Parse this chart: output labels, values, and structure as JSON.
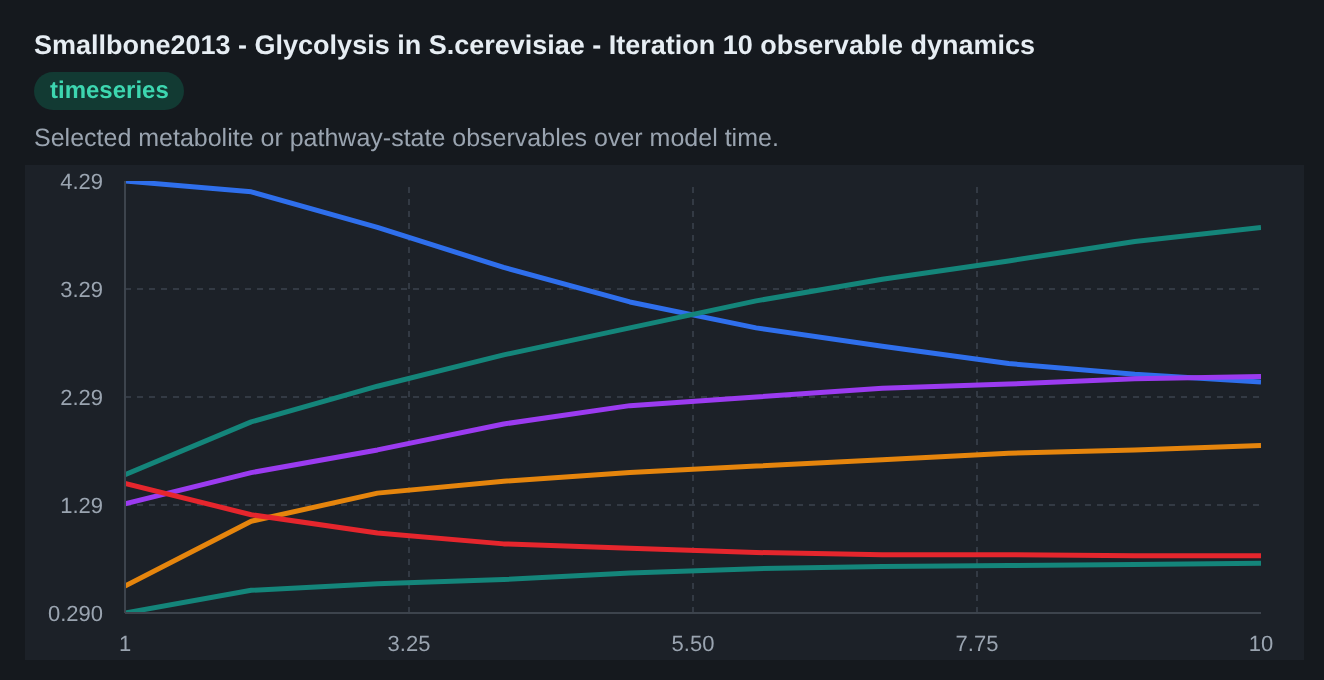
{
  "chart_data": {
    "type": "line",
    "title": "Smallbone2013 - Glycolysis in S.cerevisiae - Iteration 10 observable dynamics",
    "subtitle": "Selected metabolite or pathway-state observables over model time.",
    "annotations": [
      "timeseries"
    ],
    "x": [
      1,
      2,
      3,
      4,
      5,
      6,
      7,
      8,
      9,
      10
    ],
    "series": [
      {
        "color": "#2f6fec",
        "values": [
          4.29,
          4.19,
          3.86,
          3.49,
          3.17,
          2.93,
          2.76,
          2.6,
          2.5,
          2.43
        ]
      },
      {
        "color": "#14857a",
        "values": [
          1.57,
          2.06,
          2.39,
          2.68,
          2.93,
          3.18,
          3.38,
          3.55,
          3.73,
          3.86
        ]
      },
      {
        "color": "#9b3bf0",
        "values": [
          1.3,
          1.59,
          1.8,
          2.04,
          2.21,
          2.29,
          2.37,
          2.41,
          2.46,
          2.48
        ]
      },
      {
        "color": "#e5850d",
        "values": [
          0.54,
          1.14,
          1.4,
          1.51,
          1.59,
          1.65,
          1.71,
          1.77,
          1.8,
          1.84
        ]
      },
      {
        "color": "#e5262d",
        "values": [
          1.49,
          1.2,
          1.03,
          0.93,
          0.89,
          0.85,
          0.83,
          0.83,
          0.82,
          0.82
        ]
      },
      {
        "color": "#14857a",
        "values": [
          0.29,
          0.5,
          0.56,
          0.6,
          0.66,
          0.7,
          0.72,
          0.73,
          0.74,
          0.75
        ]
      }
    ],
    "xlim": [
      1,
      10
    ],
    "ylim": [
      0.29,
      4.29
    ],
    "xticks": [
      1,
      3.25,
      {
        "value": 5.5,
        "label": "5.50"
      },
      7.75,
      10
    ],
    "yticks": [
      {
        "value": 0.29,
        "label": "0.290"
      },
      1.29,
      2.29,
      3.29,
      4.29
    ],
    "grid": true,
    "marker": "none",
    "line_style": "solid"
  }
}
